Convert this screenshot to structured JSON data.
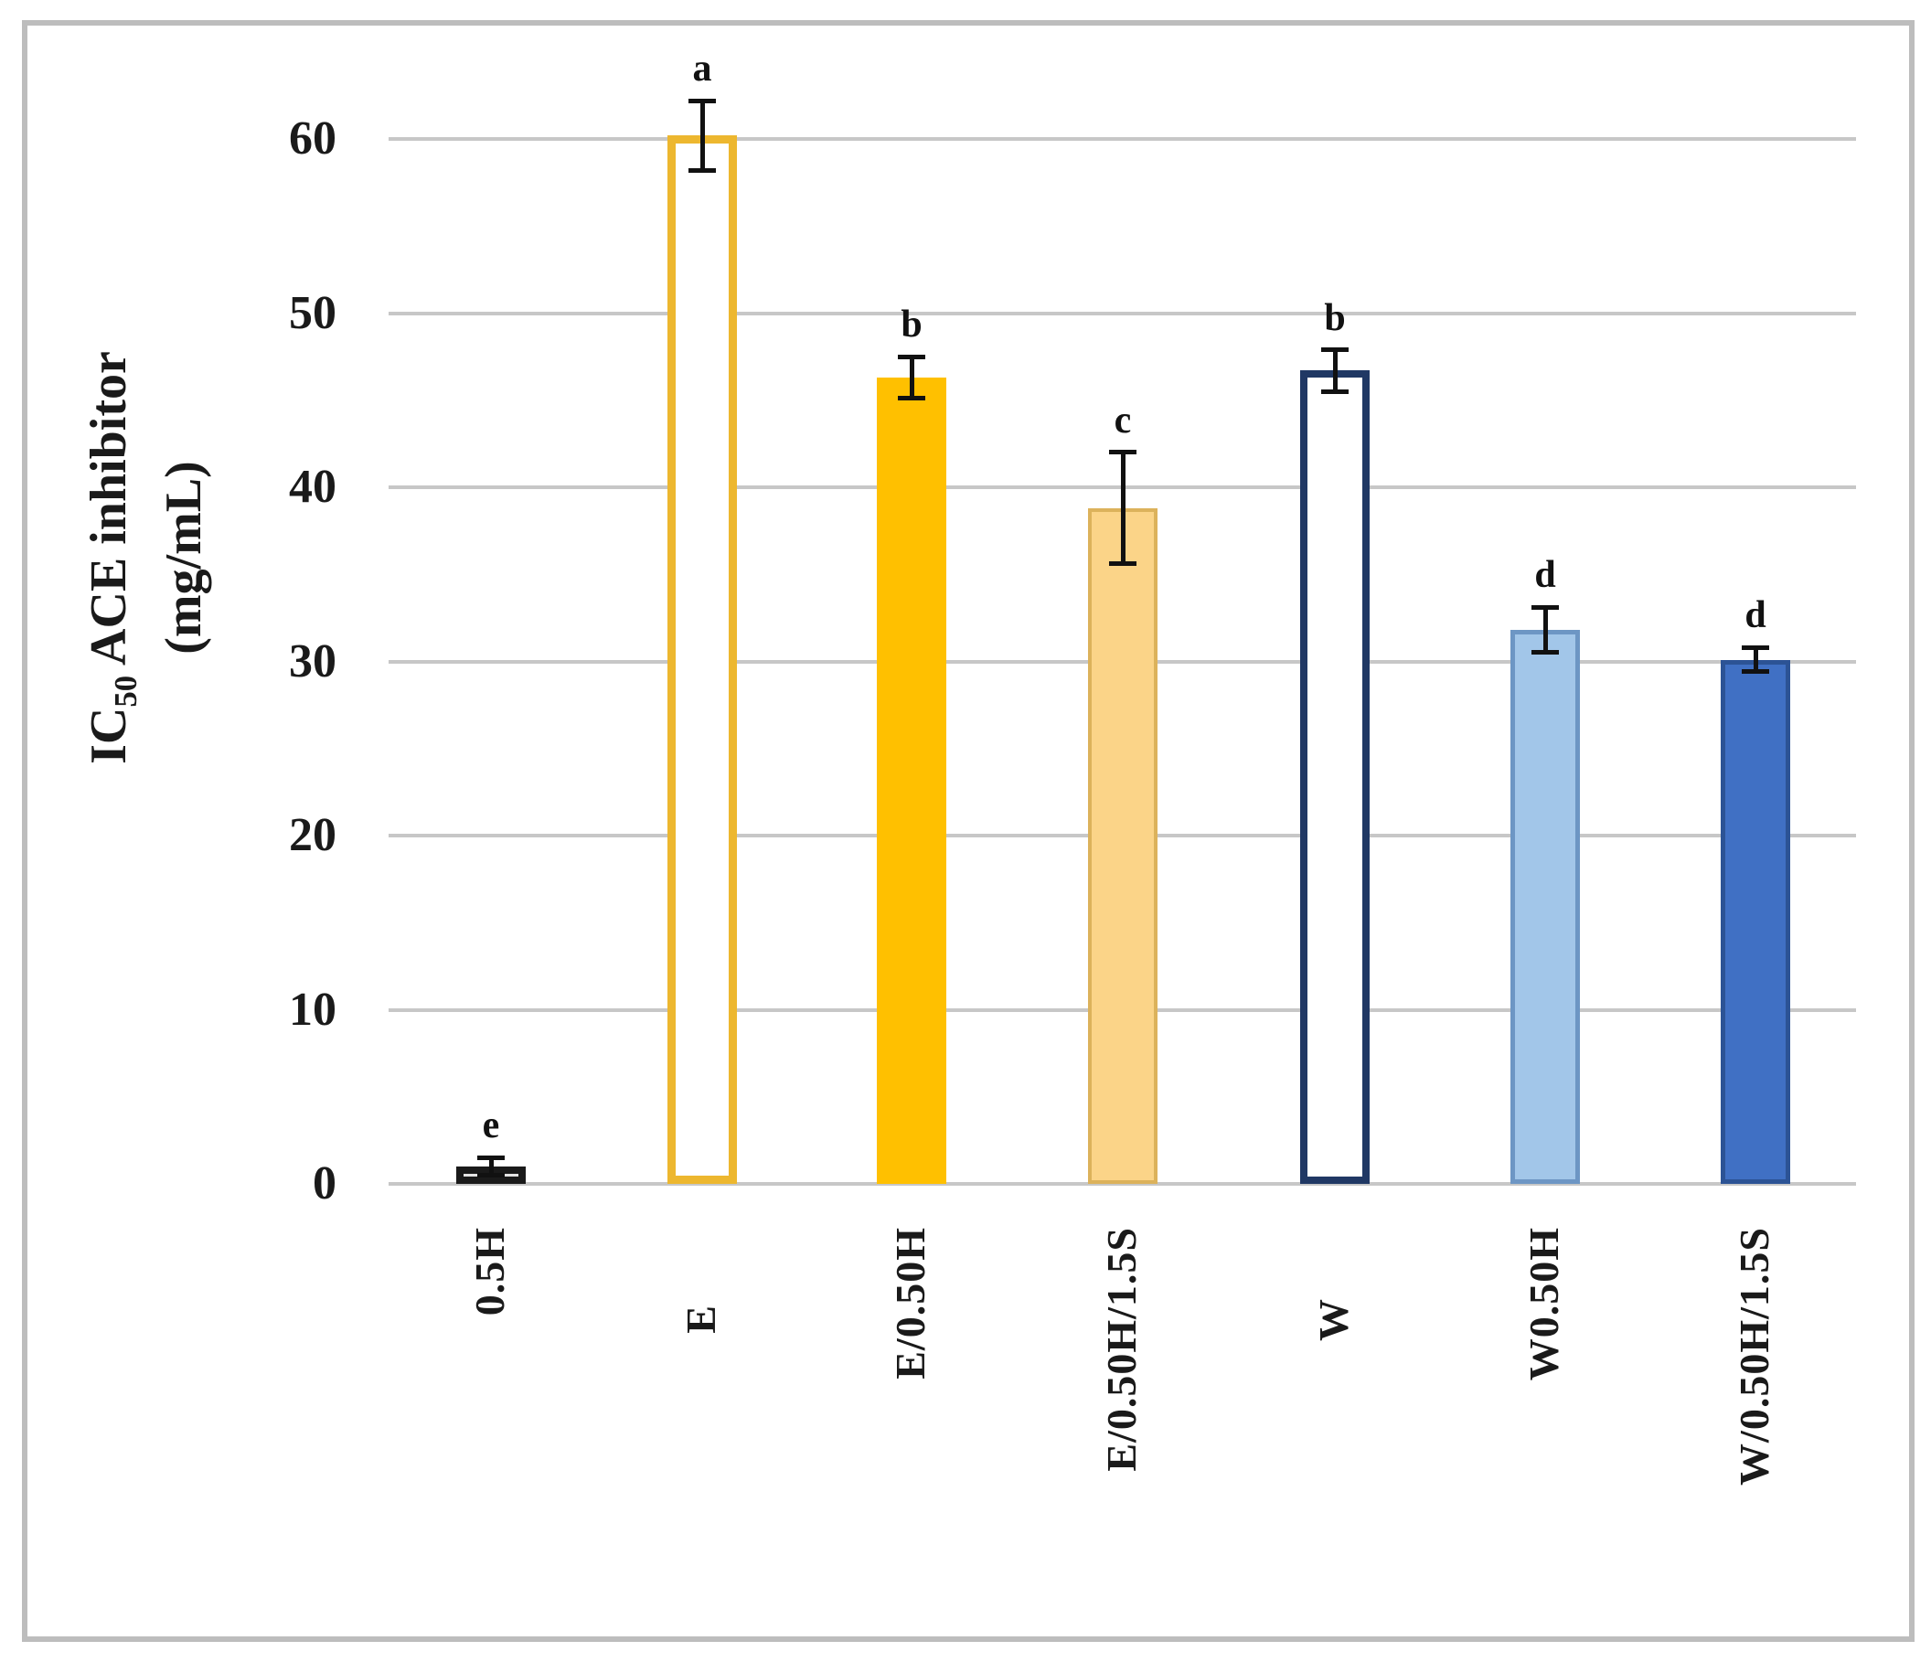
{
  "chart_data": {
    "type": "bar",
    "title": "",
    "ylabel": "IC50 ACE inhibitor (mg/mL)",
    "ylabel_parts": {
      "prefix": "IC",
      "subscript": "50",
      "rest": " ACE inhibitor",
      "unit": "(mg/mL)"
    },
    "xlabel": "",
    "categories": [
      "0.5H",
      "E",
      "E/0.50H",
      "E/0.50H/1.5S",
      "W",
      "W0.50H",
      "W/0.50H/1.5S"
    ],
    "values": [
      1.0,
      60.2,
      46.3,
      38.8,
      46.7,
      31.8,
      30.1
    ],
    "errors": [
      0.5,
      2.0,
      1.2,
      3.2,
      1.2,
      1.3,
      0.7
    ],
    "sig_letters": [
      "e",
      "a",
      "b",
      "c",
      "b",
      "d",
      "d"
    ],
    "y_ticks": [
      0,
      10,
      20,
      30,
      40,
      50,
      60
    ],
    "ylim": [
      0,
      60
    ],
    "grid": true,
    "legend_position": "none",
    "bar_styles": [
      {
        "fill": "#E4E4E4",
        "stroke": "#1A1A1A"
      },
      {
        "fill": "#FFFFFF",
        "stroke": "#EDB72F"
      },
      {
        "fill": "#FFC000",
        "stroke": "#FFC000"
      },
      {
        "fill": "#FBD488",
        "stroke": "#DCB25B"
      },
      {
        "fill": "#FFFFFF",
        "stroke": "#203864"
      },
      {
        "fill": "#A2C6E9",
        "stroke": "#6D96C4"
      },
      {
        "fill": "#4070C4",
        "stroke": "#2C5395"
      }
    ],
    "colors": {
      "grid": "#C7C7C7",
      "figure_border": "#BDBDBD",
      "error_bar": "#111111",
      "text": "#1A1A1A",
      "background": "#FFFFFF"
    }
  }
}
